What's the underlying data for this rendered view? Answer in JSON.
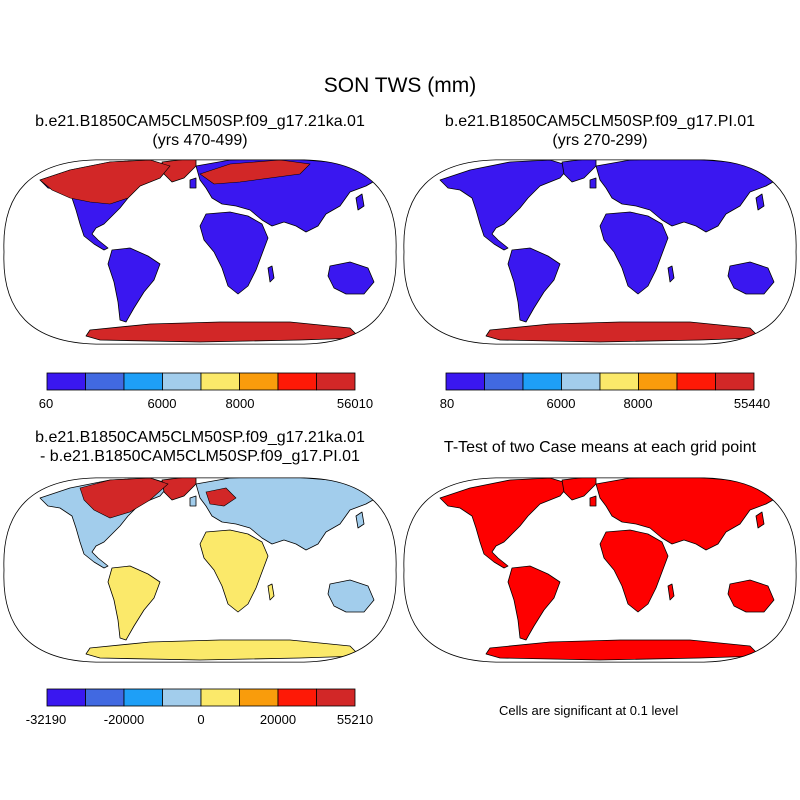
{
  "title": "SON TWS (mm)",
  "panels": [
    {
      "id": "case1",
      "title_lines": [
        "b.e21.B1850CAM5CLM50SP.f09_g17.21ka.01",
        "(yrs 470-499)"
      ],
      "colorbar_labels": [
        "60",
        "6000",
        "8000",
        "56010"
      ]
    },
    {
      "id": "case2",
      "title_lines": [
        "b.e21.B1850CAM5CLM50SP.f09_g17.PI.01",
        "(yrs 270-299)"
      ],
      "colorbar_labels": [
        "80",
        "6000",
        "8000",
        "55440"
      ]
    },
    {
      "id": "difference",
      "title_lines": [
        "b.e21.B1850CAM5CLM50SP.f09_g17.21ka.01",
        "- b.e21.B1850CAM5CLM50SP.f09_g17.PI.01"
      ],
      "colorbar_labels": [
        "-32190",
        "-20000",
        "0",
        "20000",
        "55210"
      ]
    },
    {
      "id": "ttest",
      "title_lines": [
        "T-Test of two Case means at each grid point"
      ],
      "note": "Cells are significant at 0.1 level"
    }
  ],
  "colors": {
    "palette": [
      "#3a17f0",
      "#4169e1",
      "#1e9ff7",
      "#a2cdec",
      "#fbe96a",
      "#f99c0c",
      "#fe1906",
      "#d22727"
    ],
    "significant": "#fe0000",
    "coast": "#000000"
  }
}
